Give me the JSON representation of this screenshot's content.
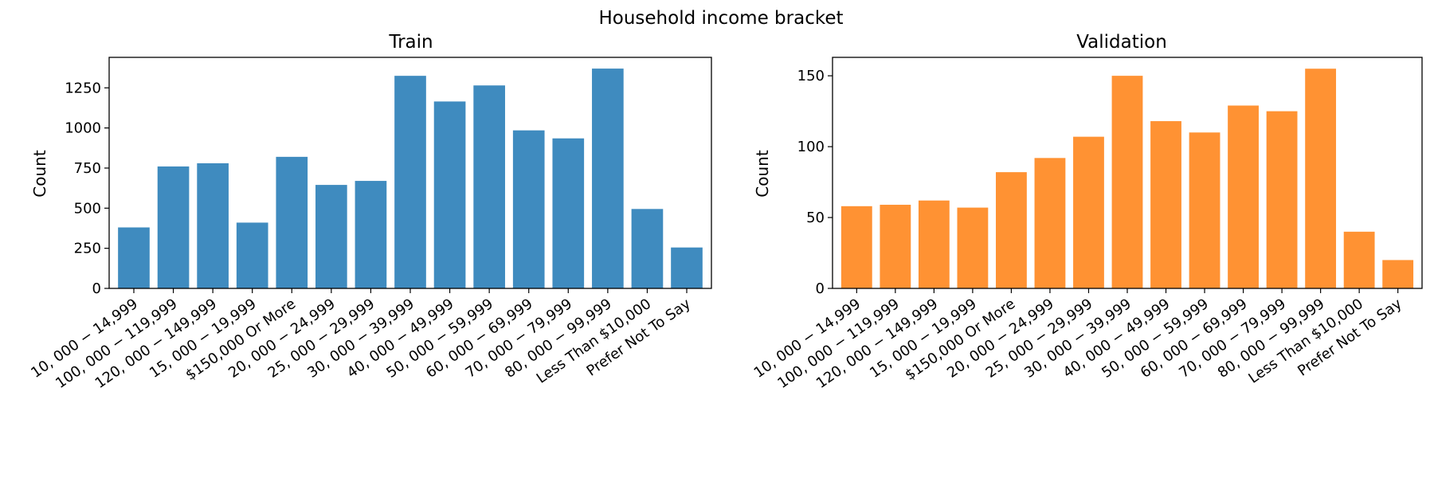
{
  "figure": {
    "suptitle": "Household income bracket"
  },
  "chart_data": [
    {
      "type": "bar",
      "title": "Train",
      "xlabel": "",
      "ylabel": "Count",
      "ylim": [
        0,
        1440
      ],
      "yticks": [
        0,
        250,
        500,
        750,
        1000,
        1250
      ],
      "color": "#3f8bbf",
      "categories": [
        "10, 000 − 14,999",
        "100, 000 − 119,999",
        "120, 000 − 149,999",
        "15, 000 − 19,999",
        "$150,000 Or More",
        "20, 000 − 24,999",
        "25, 000 − 29,999",
        "30, 000 − 39,999",
        "40, 000 − 49,999",
        "50, 000 − 59,999",
        "60, 000 − 69,999",
        "70, 000 − 79,999",
        "80, 000 − 99,999",
        "Less Than $10,000",
        "Prefer Not To Say"
      ],
      "values": [
        380,
        760,
        780,
        410,
        820,
        645,
        670,
        1325,
        1165,
        1265,
        985,
        935,
        1370,
        495,
        255
      ]
    },
    {
      "type": "bar",
      "title": "Validation",
      "xlabel": "",
      "ylabel": "Count",
      "ylim": [
        0,
        163
      ],
      "yticks": [
        0,
        50,
        100,
        150
      ],
      "color": "#ff9233",
      "categories": [
        "10, 000 − 14,999",
        "100, 000 − 119,999",
        "120, 000 − 149,999",
        "15, 000 − 19,999",
        "$150,000 Or More",
        "20, 000 − 24,999",
        "25, 000 − 29,999",
        "30, 000 − 39,999",
        "40, 000 − 49,999",
        "50, 000 − 59,999",
        "60, 000 − 69,999",
        "70, 000 − 79,999",
        "80, 000 − 99,999",
        "Less Than $10,000",
        "Prefer Not To Say"
      ],
      "values": [
        58,
        59,
        62,
        57,
        82,
        92,
        107,
        150,
        118,
        110,
        129,
        125,
        155,
        40,
        20
      ]
    }
  ]
}
